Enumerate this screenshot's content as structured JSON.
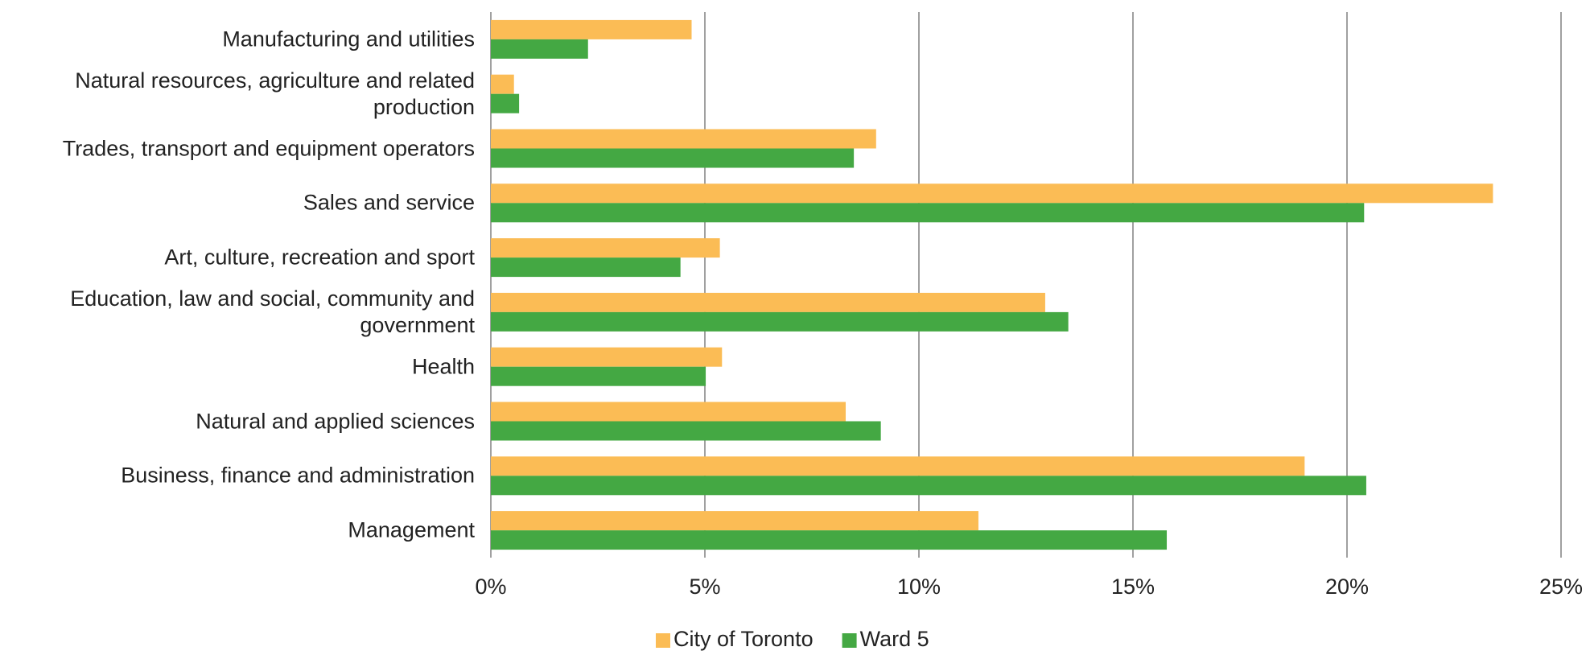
{
  "chart_data": {
    "type": "hbar",
    "categories": [
      "Manufacturing and utilities",
      "Natural resources, agriculture and related production",
      "Trades, transport and equipment operators",
      "Sales and service",
      "Art, culture, recreation and sport",
      "Education, law and social, community and government",
      "Health",
      "Natural and applied sciences",
      "Business, finance and administration",
      "Management"
    ],
    "series": [
      {
        "name": "City of Toronto",
        "color": "#fbbc55",
        "values": [
          4.69,
          0.54,
          9.0,
          23.41,
          5.35,
          12.95,
          5.4,
          8.29,
          19.01,
          11.39
        ]
      },
      {
        "name": "Ward 5",
        "color": "#44a843",
        "values": [
          2.27,
          0.66,
          8.48,
          20.4,
          4.43,
          13.49,
          5.02,
          9.11,
          20.45,
          15.79
        ]
      }
    ],
    "xlim": [
      0,
      25
    ],
    "xticks": [
      {
        "value": 0,
        "label": "0%"
      },
      {
        "value": 5,
        "label": "5%"
      },
      {
        "value": 10,
        "label": "10%"
      },
      {
        "value": 15,
        "label": "15%"
      },
      {
        "value": 20,
        "label": "20%"
      },
      {
        "value": 25,
        "label": "25%"
      }
    ],
    "grid": true,
    "legend": "bottom"
  }
}
